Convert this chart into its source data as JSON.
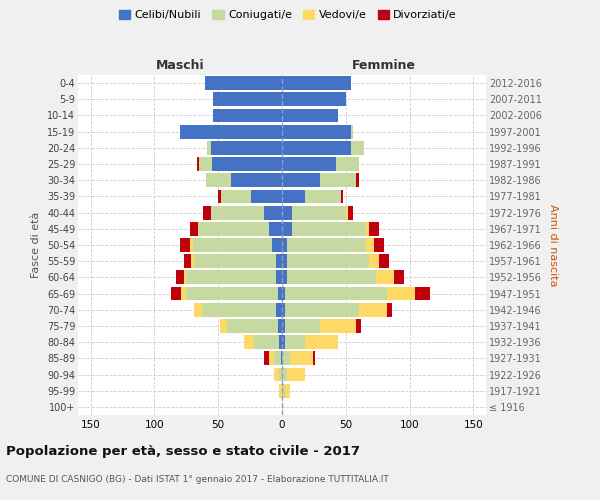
{
  "age_groups": [
    "100+",
    "95-99",
    "90-94",
    "85-89",
    "80-84",
    "75-79",
    "70-74",
    "65-69",
    "60-64",
    "55-59",
    "50-54",
    "45-49",
    "40-44",
    "35-39",
    "30-34",
    "25-29",
    "20-24",
    "15-19",
    "10-14",
    "5-9",
    "0-4"
  ],
  "birth_years": [
    "≤ 1916",
    "1917-1921",
    "1922-1926",
    "1927-1931",
    "1932-1936",
    "1937-1941",
    "1942-1946",
    "1947-1951",
    "1952-1956",
    "1957-1961",
    "1962-1966",
    "1967-1971",
    "1972-1976",
    "1977-1981",
    "1982-1986",
    "1987-1991",
    "1992-1996",
    "1997-2001",
    "2002-2006",
    "2007-2011",
    "2012-2016"
  ],
  "males": {
    "celibi": [
      0,
      0,
      0,
      1,
      2,
      3,
      5,
      3,
      5,
      5,
      8,
      10,
      14,
      24,
      40,
      55,
      56,
      80,
      54,
      54,
      60
    ],
    "coniugati": [
      0,
      0,
      2,
      5,
      20,
      40,
      58,
      72,
      70,
      64,
      62,
      56,
      42,
      24,
      20,
      10,
      3,
      0,
      0,
      0,
      0
    ],
    "vedovi": [
      0,
      2,
      4,
      4,
      8,
      6,
      6,
      4,
      2,
      2,
      2,
      0,
      0,
      0,
      0,
      0,
      0,
      0,
      0,
      0,
      0
    ],
    "divorziati": [
      0,
      0,
      0,
      4,
      0,
      0,
      0,
      8,
      6,
      6,
      8,
      6,
      6,
      2,
      0,
      2,
      0,
      0,
      0,
      0,
      0
    ]
  },
  "females": {
    "nubili": [
      0,
      0,
      0,
      0,
      2,
      2,
      2,
      2,
      4,
      4,
      4,
      8,
      8,
      18,
      30,
      42,
      54,
      54,
      44,
      50,
      54
    ],
    "coniugate": [
      0,
      2,
      4,
      6,
      16,
      28,
      58,
      80,
      70,
      64,
      62,
      58,
      42,
      28,
      28,
      18,
      10,
      2,
      0,
      0,
      0
    ],
    "vedove": [
      0,
      4,
      14,
      18,
      26,
      28,
      22,
      22,
      14,
      8,
      6,
      2,
      2,
      0,
      0,
      0,
      0,
      0,
      0,
      0,
      0
    ],
    "divorziate": [
      0,
      0,
      0,
      2,
      0,
      4,
      4,
      12,
      8,
      8,
      8,
      8,
      4,
      2,
      2,
      0,
      0,
      0,
      0,
      0,
      0
    ]
  },
  "colors": {
    "celibi": "#4472C4",
    "coniugati": "#C5D9A0",
    "vedovi": "#FFD966",
    "divorziati": "#C0000C"
  },
  "legend_labels": [
    "Celibi/Nubili",
    "Coniugati/e",
    "Vedovi/e",
    "Divorziati/e"
  ],
  "title": "Popolazione per età, sesso e stato civile - 2017",
  "subtitle": "COMUNE DI CASNIGO (BG) - Dati ISTAT 1° gennaio 2017 - Elaborazione TUTTITALIA.IT",
  "xlabel_left": "Maschi",
  "xlabel_right": "Femmine",
  "ylabel_left": "Fasce di età",
  "ylabel_right": "Anni di nascita",
  "xlim": 160,
  "xticks": [
    -150,
    -100,
    -50,
    0,
    50,
    100,
    150
  ],
  "background_color": "#f0f0f0",
  "plot_background": "#ffffff"
}
